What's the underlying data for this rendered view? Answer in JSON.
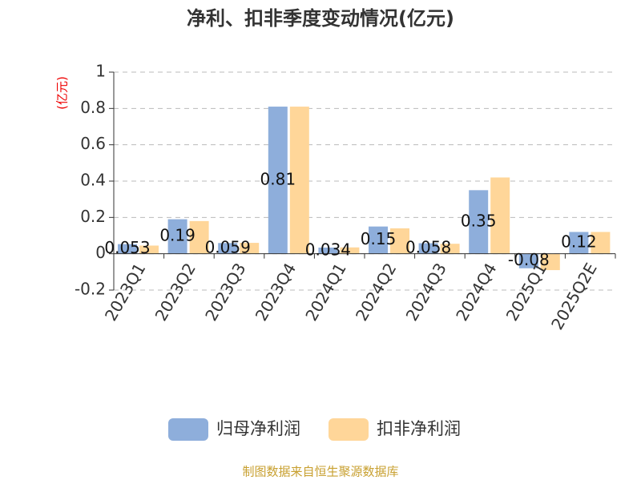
{
  "chart_data": {
    "type": "bar",
    "title": "净利、扣非季度变动情况(亿元)",
    "y_label": "(亿元)",
    "categories": [
      "2023Q1",
      "2023Q2",
      "2023Q3",
      "2023Q4",
      "2024Q1",
      "2024Q2",
      "2024Q3",
      "2024Q4",
      "2025Q1",
      "2025Q2E"
    ],
    "series": [
      {
        "name": "归母净利润",
        "color": "#8eaedb",
        "values": [
          0.053,
          0.19,
          0.059,
          0.81,
          0.034,
          0.15,
          0.058,
          0.35,
          -0.08,
          0.12
        ]
      },
      {
        "name": "扣非净利润",
        "color": "#ffd699",
        "values": [
          0.045,
          0.18,
          0.06,
          0.81,
          0.035,
          0.14,
          0.055,
          0.42,
          -0.09,
          0.12
        ]
      }
    ],
    "ylim": [
      -0.2,
      1
    ],
    "yticks": [
      -0.2,
      0,
      0.2,
      0.4,
      0.6,
      0.8,
      1
    ],
    "grid": true,
    "source": "制图数据来自恒生聚源数据库"
  }
}
